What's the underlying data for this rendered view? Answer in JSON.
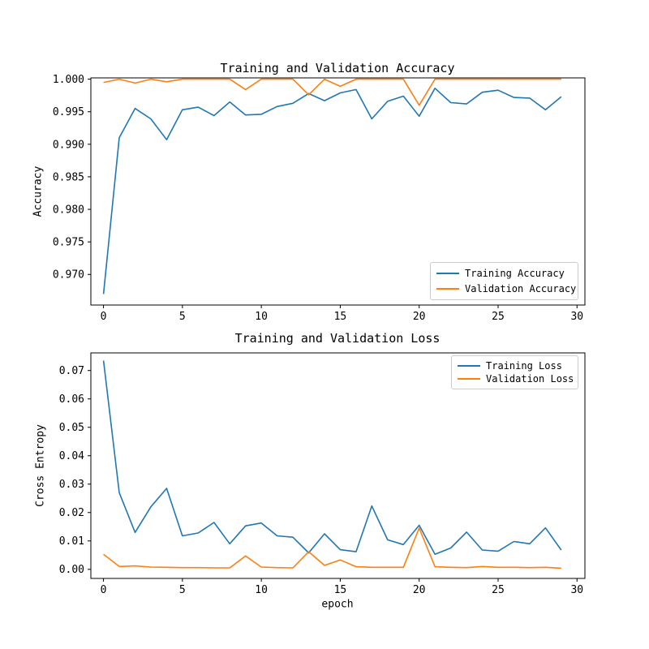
{
  "figure": {
    "background": "#ffffff",
    "text_color": "#000000",
    "spine_color": "#000000"
  },
  "chart_data": [
    {
      "type": "line",
      "title": "Training and Validation Accuracy",
      "xlabel": "",
      "ylabel": "Accuracy",
      "grid": false,
      "legend_position": "lower right",
      "x": [
        0,
        1,
        2,
        3,
        4,
        5,
        6,
        7,
        8,
        9,
        10,
        11,
        12,
        13,
        14,
        15,
        16,
        17,
        18,
        19,
        20,
        21,
        22,
        23,
        24,
        25,
        26,
        27,
        28,
        29
      ],
      "series": [
        {
          "name": "Training Accuracy",
          "color": "#1f77b4",
          "values": [
            0.967,
            0.991,
            0.9955,
            0.9939,
            0.9907,
            0.9953,
            0.9957,
            0.9944,
            0.9965,
            0.9945,
            0.9946,
            0.9958,
            0.9963,
            0.9978,
            0.9967,
            0.9979,
            0.9984,
            0.9939,
            0.9966,
            0.9974,
            0.9943,
            0.9986,
            0.9964,
            0.9962,
            0.998,
            0.9983,
            0.9972,
            0.9971,
            0.9953,
            0.9973
          ]
        },
        {
          "name": "Validation Accuracy",
          "color": "#ff7f0e",
          "values": [
            0.9995,
            1.0,
            0.9994,
            1.0,
            0.9996,
            1.0,
            1.0,
            1.0,
            1.0,
            0.9984,
            1.0,
            1.0,
            1.0,
            0.9976,
            1.0,
            0.9989,
            1.0,
            1.0,
            1.0,
            1.0,
            0.996,
            1.0,
            1.0,
            1.0,
            1.0,
            1.0,
            1.0,
            1.0,
            1.0,
            1.0
          ]
        }
      ],
      "xlim": [
        -0.8,
        30.5
      ],
      "ylim": [
        0.9653,
        1.0002
      ],
      "xticks": [
        0,
        5,
        10,
        15,
        20,
        25,
        30
      ],
      "xtick_labels": [
        "0",
        "5",
        "10",
        "15",
        "20",
        "25",
        "30"
      ],
      "yticks": [
        0.97,
        0.975,
        0.98,
        0.985,
        0.99,
        0.995,
        1.0
      ],
      "ytick_labels": [
        "0.970",
        "0.975",
        "0.980",
        "0.985",
        "0.990",
        "0.995",
        "1.000"
      ]
    },
    {
      "type": "line",
      "title": "Training and Validation Loss",
      "xlabel": "epoch",
      "ylabel": "Cross Entropy",
      "grid": false,
      "legend_position": "upper right",
      "x": [
        0,
        1,
        2,
        3,
        4,
        5,
        6,
        7,
        8,
        9,
        10,
        11,
        12,
        13,
        14,
        15,
        16,
        17,
        18,
        19,
        20,
        21,
        22,
        23,
        24,
        25,
        26,
        27,
        28,
        29
      ],
      "series": [
        {
          "name": "Training Loss",
          "color": "#1f77b4",
          "values": [
            0.0735,
            0.027,
            0.013,
            0.022,
            0.0285,
            0.0118,
            0.0128,
            0.0165,
            0.009,
            0.0153,
            0.0163,
            0.0118,
            0.0113,
            0.0058,
            0.0125,
            0.0069,
            0.0062,
            0.0223,
            0.0104,
            0.0087,
            0.0155,
            0.0053,
            0.0075,
            0.0131,
            0.0068,
            0.0064,
            0.0098,
            0.009,
            0.0146,
            0.0068
          ]
        },
        {
          "name": "Validation Loss",
          "color": "#ff7f0e",
          "values": [
            0.0053,
            0.001,
            0.0012,
            0.0008,
            0.0007,
            0.0006,
            0.0006,
            0.0005,
            0.0005,
            0.0047,
            0.0008,
            0.0006,
            0.0005,
            0.0062,
            0.0014,
            0.0033,
            0.0009,
            0.0007,
            0.0007,
            0.0007,
            0.0145,
            0.0009,
            0.0007,
            0.0006,
            0.001,
            0.0007,
            0.0007,
            0.0006,
            0.0007,
            0.0004
          ]
        }
      ],
      "xlim": [
        -0.8,
        30.5
      ],
      "ylim": [
        -0.0032,
        0.0762
      ],
      "xticks": [
        0,
        5,
        10,
        15,
        20,
        25,
        30
      ],
      "xtick_labels": [
        "0",
        "5",
        "10",
        "15",
        "20",
        "25",
        "30"
      ],
      "yticks": [
        0.0,
        0.01,
        0.02,
        0.03,
        0.04,
        0.05,
        0.06,
        0.07
      ],
      "ytick_labels": [
        "0.00",
        "0.01",
        "0.02",
        "0.03",
        "0.04",
        "0.05",
        "0.06",
        "0.07"
      ]
    }
  ]
}
